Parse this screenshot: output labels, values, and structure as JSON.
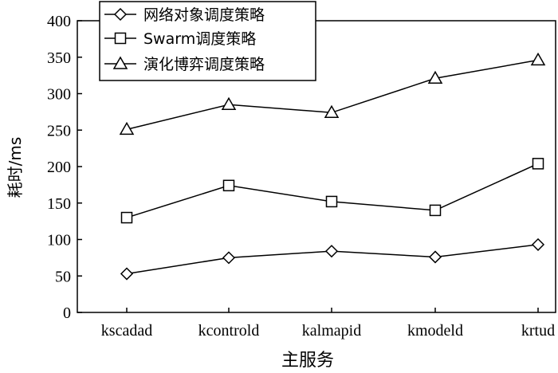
{
  "chart_data": {
    "type": "line",
    "title": "",
    "xlabel": "主服务",
    "ylabel": "耗时/ms",
    "categories": [
      "kscadad",
      "kcontrold",
      "kalmapid",
      "kmodeld",
      "krtud"
    ],
    "ylim": [
      0,
      400
    ],
    "yticks": [
      0,
      50,
      100,
      150,
      200,
      250,
      300,
      350,
      400
    ],
    "grid": false,
    "legend_position": "top-left",
    "series": [
      {
        "name": "网络对象调度策略",
        "marker": "diamond",
        "values": [
          53,
          75,
          84,
          76,
          93
        ]
      },
      {
        "name": "Swarm调度策略",
        "marker": "square",
        "values": [
          130,
          174,
          152,
          140,
          204
        ]
      },
      {
        "name": "演化博弈调度策略",
        "marker": "triangle",
        "values": [
          251,
          285,
          274,
          321,
          346
        ]
      }
    ],
    "colors": {
      "line": "#000000",
      "background": "#ffffff"
    }
  }
}
